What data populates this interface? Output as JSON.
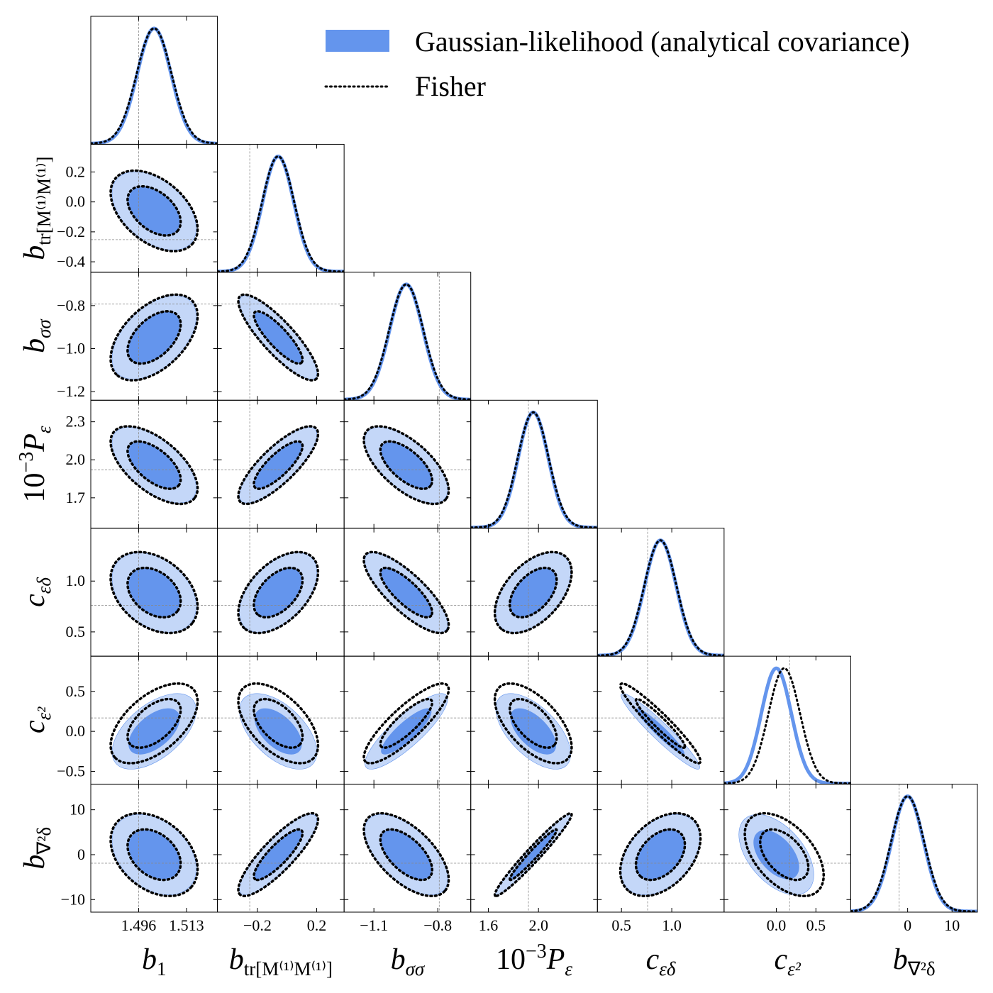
{
  "chart_data": {
    "type": "corner",
    "legend": [
      {
        "name": "Gaussian-likelihood (analytical covariance)",
        "color": "#6495ed"
      },
      {
        "name": "Fisher",
        "color": "#000000"
      }
    ],
    "legend_loc": "upper right",
    "parameters": [
      {
        "label": {
          "base": "b",
          "sub": "1"
        },
        "lim": [
          1.479,
          1.524
        ],
        "xticks": [
          1.496,
          1.513
        ],
        "yticks": [],
        "truth": 1.496,
        "mean": 1.5015,
        "sigma": 0.006,
        "fisher_mean": 1.5015,
        "fisher_sigma": 0.0062
      },
      {
        "label": {
          "base": "b",
          "sub": "tr[M⁽¹⁾M⁽¹⁾]"
        },
        "lim": [
          -0.47,
          0.385
        ],
        "xticks": [
          {
            "value": -0.2,
            "label": "−0.2"
          },
          0.2
        ],
        "yticks": [
          0.2,
          {
            "value": 0.0,
            "label": "0.0"
          },
          {
            "value": -0.2,
            "label": "−0.2"
          },
          {
            "value": -0.4,
            "label": "−0.4"
          }
        ],
        "truth": -0.252,
        "mean": -0.06,
        "sigma": 0.105,
        "fisher_mean": -0.06,
        "fisher_sigma": 0.108
      },
      {
        "label": {
          "base": "b",
          "sub": "σσ"
        },
        "lim": [
          -1.24,
          -0.645
        ],
        "xticks": [
          {
            "value": -1.1,
            "label": "−1.1"
          },
          {
            "value": -0.8,
            "label": "−0.8"
          }
        ],
        "yticks": [
          {
            "value": -0.8,
            "label": "−0.8"
          },
          {
            "value": -1.0,
            "label": "−1.0"
          },
          {
            "value": -1.2,
            "label": "−1.2"
          }
        ],
        "truth": -0.793,
        "mean": -0.948,
        "sigma": 0.078,
        "fisher_mean": -0.948,
        "fisher_sigma": 0.08
      },
      {
        "label": {
          "pre": "10",
          "sup": "−3",
          "base": "P",
          "sub": "ε"
        },
        "lim": [
          1.46,
          2.47
        ],
        "xticks": [
          1.6,
          {
            "value": 2.0,
            "label": "2.0"
          }
        ],
        "yticks": [
          2.3,
          {
            "value": 2.0,
            "label": "2.0"
          },
          1.7
        ],
        "truth": 1.92,
        "mean": 1.958,
        "sigma": 0.12,
        "fisher_mean": 1.958,
        "fisher_sigma": 0.123
      },
      {
        "label": {
          "base": "c",
          "sub": "εδ"
        },
        "lim": [
          0.261,
          1.52
        ],
        "xticks": [
          0.5,
          {
            "value": 1.0,
            "label": "1.0"
          }
        ],
        "yticks": [
          {
            "value": 1.0,
            "label": "1.0"
          },
          0.5
        ],
        "truth": 0.76,
        "mean": 0.887,
        "sigma": 0.157,
        "fisher_mean": 0.887,
        "fisher_sigma": 0.16
      },
      {
        "label": {
          "base": "c",
          "sub": "ε²"
        },
        "lim": [
          -0.66,
          0.94
        ],
        "xticks": [
          {
            "value": 0.0,
            "label": "0.0"
          },
          0.5
        ],
        "yticks": [
          0.5,
          {
            "value": 0.0,
            "label": "0.0"
          },
          {
            "value": -0.5,
            "label": "−0.5"
          }
        ],
        "truth": 0.168,
        "mean": 0.0,
        "sigma": 0.19,
        "fisher_mean": 0.1,
        "fisher_sigma": 0.2
      },
      {
        "label": {
          "base": "b",
          "sub": "∇²δ"
        },
        "lim": [
          -12.8,
          15.7
        ],
        "xticks": [
          0,
          10
        ],
        "yticks": [
          10,
          0,
          {
            "value": -10,
            "label": "−10"
          }
        ],
        "truth": -1.9,
        "mean": 0.0,
        "sigma": 3.6,
        "fisher_mean": 0.0,
        "fisher_sigma": 3.7
      }
    ],
    "correlation": [
      [],
      [
        -0.45
      ],
      [
        0.5,
        -0.85
      ],
      [
        -0.6,
        0.8,
        -0.65
      ],
      [
        -0.35,
        0.5,
        -0.8,
        0.5
      ],
      [
        0.55,
        -0.55,
        0.85,
        -0.6,
        -0.95
      ],
      [
        -0.35,
        0.85,
        -0.6,
        0.97,
        0.4,
        -0.5
      ]
    ]
  }
}
